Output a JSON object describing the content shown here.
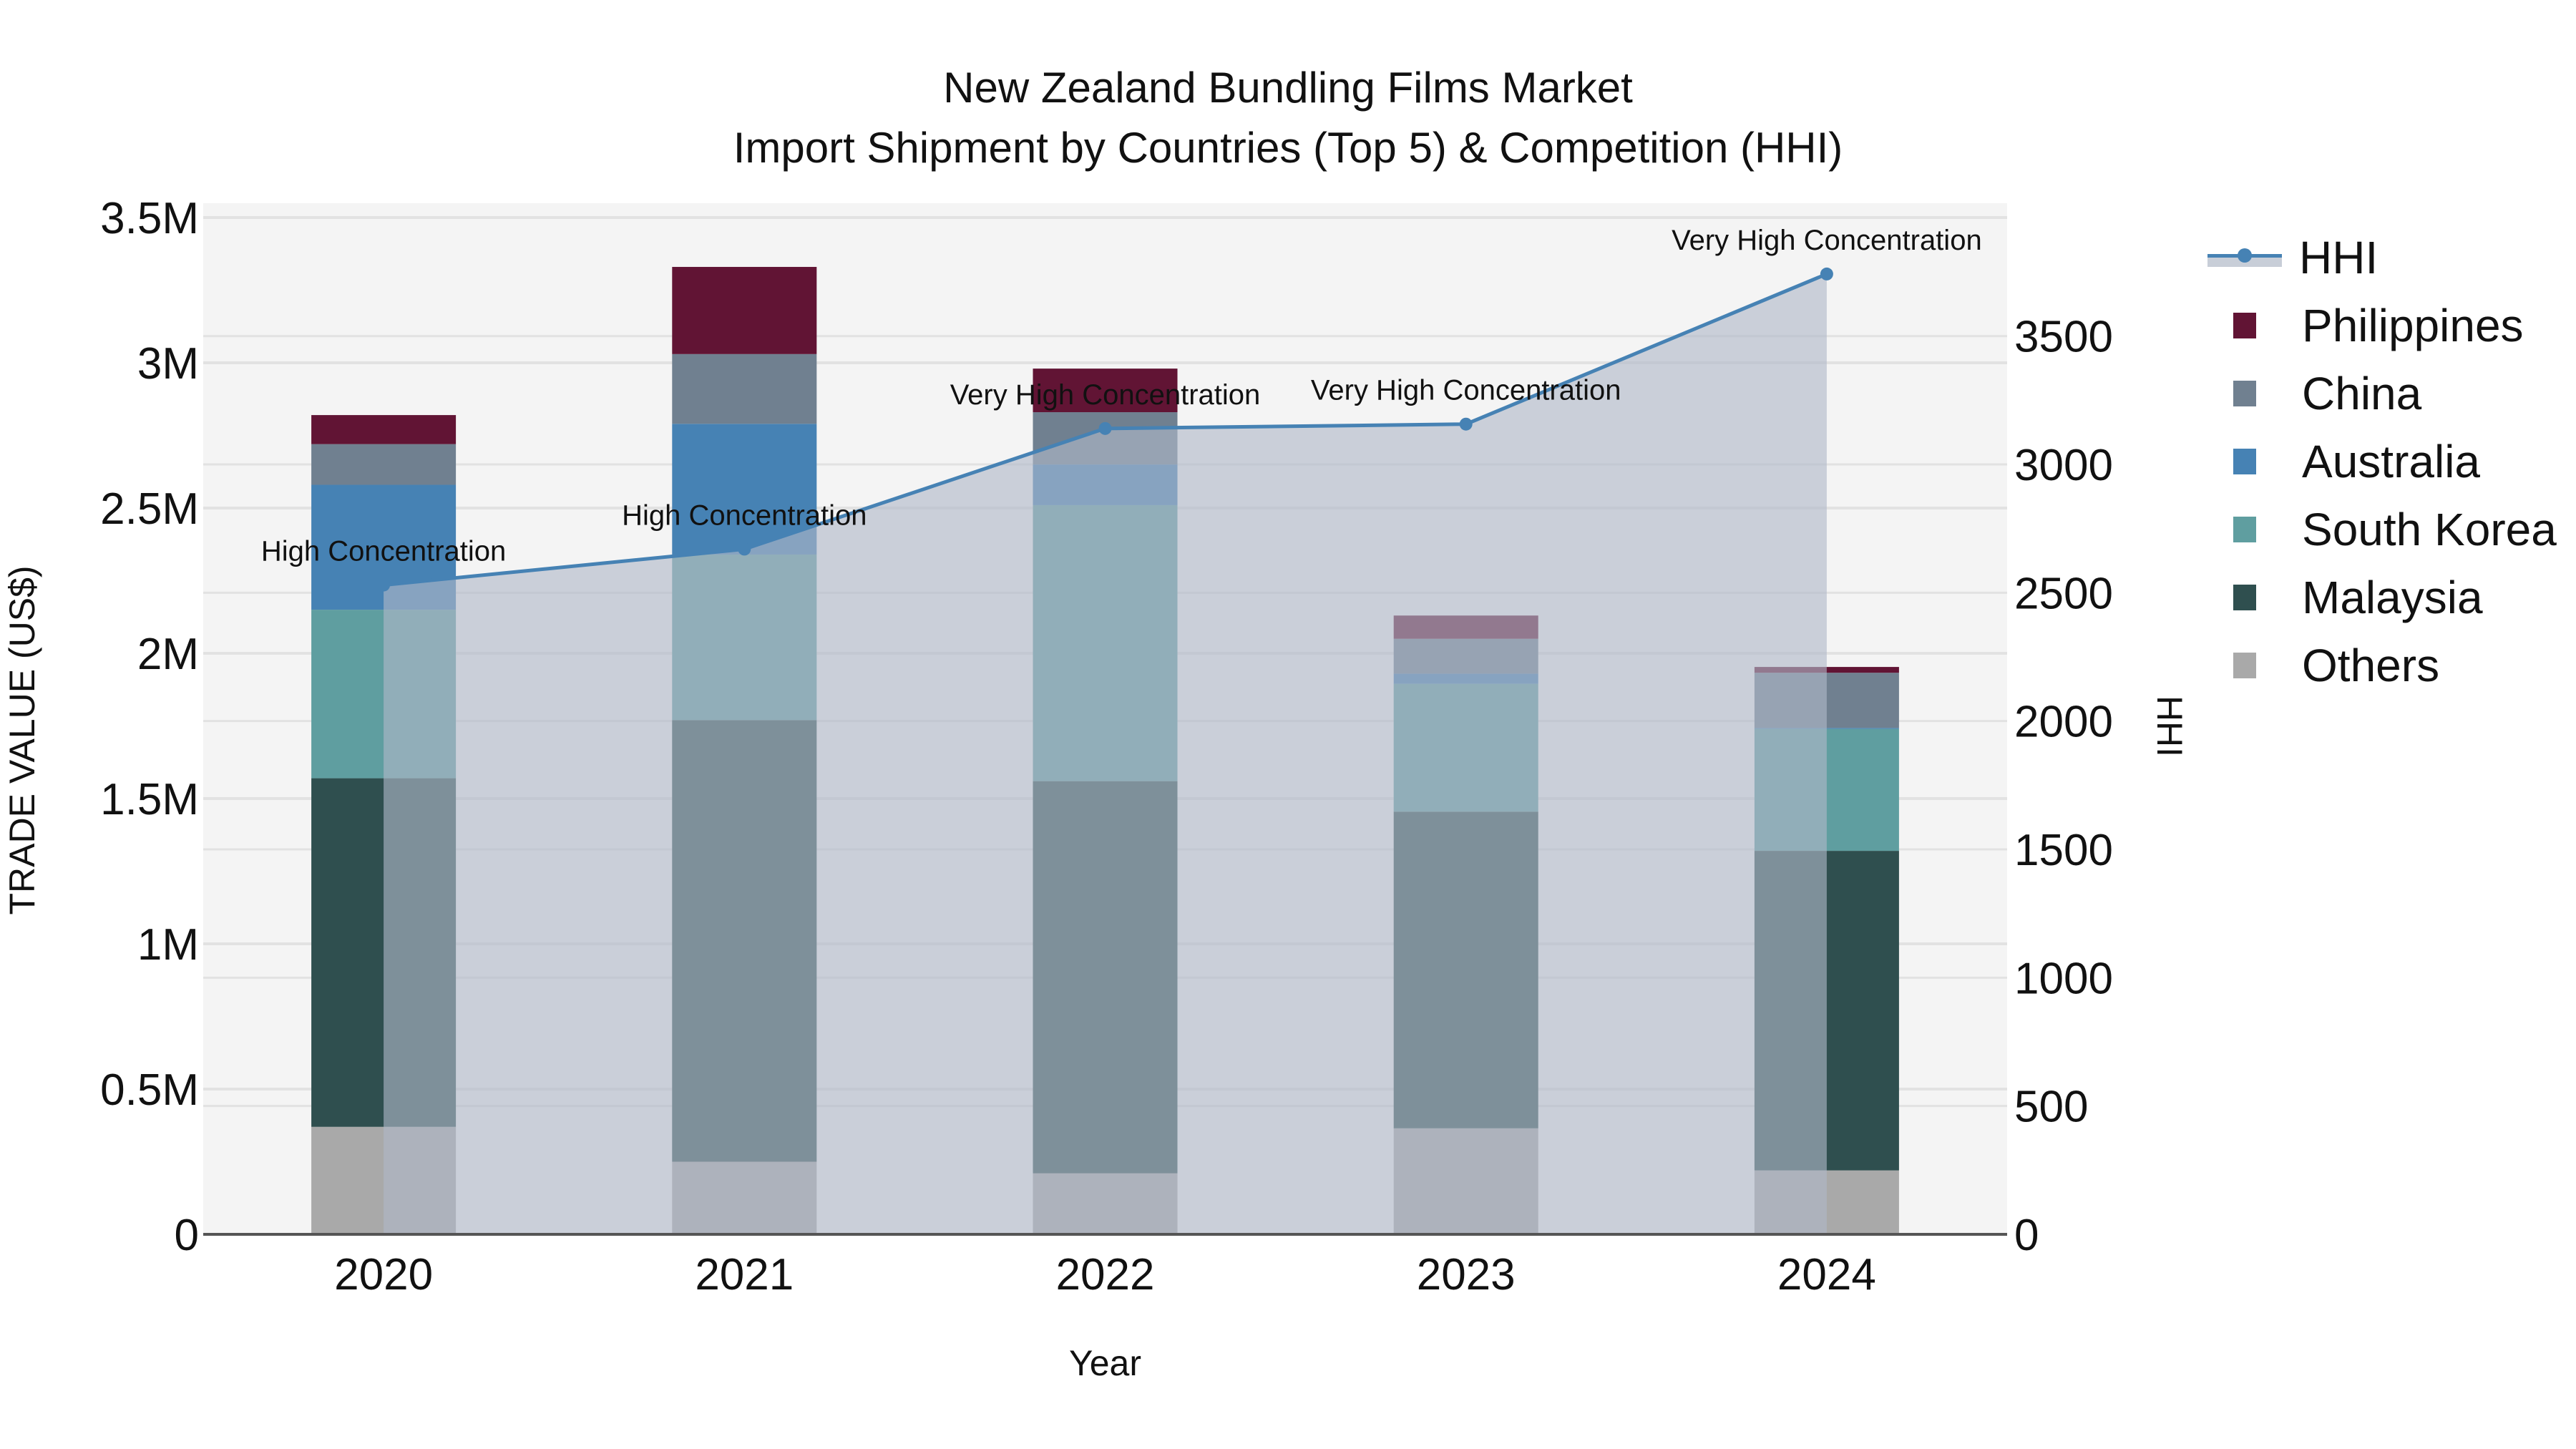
{
  "title": {
    "line1": "New Zealand Bundling Films Market",
    "line2": "Import Shipment by Countries (Top 5) & Competition (HHI)"
  },
  "axes": {
    "x_title": "Year",
    "y_left_title": "TRADE VALUE (US$)",
    "y_right_title": "HHI",
    "y_left_ticks": [
      "0",
      "0.5M",
      "1M",
      "1.5M",
      "2M",
      "2.5M",
      "3M",
      "3.5M"
    ],
    "y_right_ticks": [
      "0",
      "500",
      "1000",
      "1500",
      "2000",
      "2500",
      "3000",
      "3500"
    ]
  },
  "legend": [
    {
      "label": "HHI",
      "type": "line",
      "color": "#4682b4"
    },
    {
      "label": "Philippines",
      "type": "bar",
      "color": "#611434"
    },
    {
      "label": "China",
      "type": "bar",
      "color": "#708090"
    },
    {
      "label": "Australia",
      "type": "bar",
      "color": "#4682b4"
    },
    {
      "label": "South Korea",
      "type": "bar",
      "color": "#5f9ea0"
    },
    {
      "label": "Malaysia",
      "type": "bar",
      "color": "#2f4f4f"
    },
    {
      "label": "Others",
      "type": "bar",
      "color": "#a9a9a9"
    }
  ],
  "colors": {
    "plot_bg": "#f4f4f4",
    "grid": "#e2e2e2",
    "hhi_line": "#4682b4",
    "hhi_fill": "rgba(176,184,200,0.62)",
    "axis_line": "#555555"
  },
  "chart_data": {
    "type": "bar",
    "title": "New Zealand Bundling Films Market - Import Shipment by Countries (Top 5) & Competition (HHI)",
    "xlabel": "Year",
    "ylabel": "TRADE VALUE (US$)",
    "y2label": "HHI",
    "ylim": [
      0,
      3500000
    ],
    "y2lim": [
      0,
      3962
    ],
    "barmode": "stack",
    "grid": true,
    "legend_position": "right",
    "categories": [
      "2020",
      "2021",
      "2022",
      "2023",
      "2024"
    ],
    "series": [
      {
        "name": "Others",
        "type": "bar",
        "color": "#a9a9a9",
        "values": [
          370000,
          250000,
          210000,
          365000,
          220000
        ]
      },
      {
        "name": "Malaysia",
        "type": "bar",
        "color": "#2f4f4f",
        "values": [
          1200000,
          1520000,
          1350000,
          1090000,
          1100000
        ]
      },
      {
        "name": "South Korea",
        "type": "bar",
        "color": "#5f9ea0",
        "values": [
          580000,
          570000,
          950000,
          440000,
          420000
        ]
      },
      {
        "name": "Australia",
        "type": "bar",
        "color": "#4682b4",
        "values": [
          430000,
          450000,
          140000,
          35000,
          3000
        ]
      },
      {
        "name": "China",
        "type": "bar",
        "color": "#708090",
        "values": [
          140000,
          240000,
          180000,
          120000,
          190000
        ]
      },
      {
        "name": "Philippines",
        "type": "bar",
        "color": "#611434",
        "values": [
          100000,
          300000,
          150000,
          80000,
          20000
        ]
      },
      {
        "name": "HHI",
        "type": "line",
        "axis": "y2",
        "fill": "tozeroy",
        "color": "#4682b4",
        "values": [
          2530,
          2670,
          3140,
          3157,
          3742
        ]
      }
    ],
    "annotations": [
      {
        "x": "2020",
        "text": "High Concentration"
      },
      {
        "x": "2021",
        "text": "High Concentration"
      },
      {
        "x": "2022",
        "text": "Very High Concentration"
      },
      {
        "x": "2023",
        "text": "Very High Concentration"
      },
      {
        "x": "2024",
        "text": "Very High Concentration"
      }
    ]
  }
}
